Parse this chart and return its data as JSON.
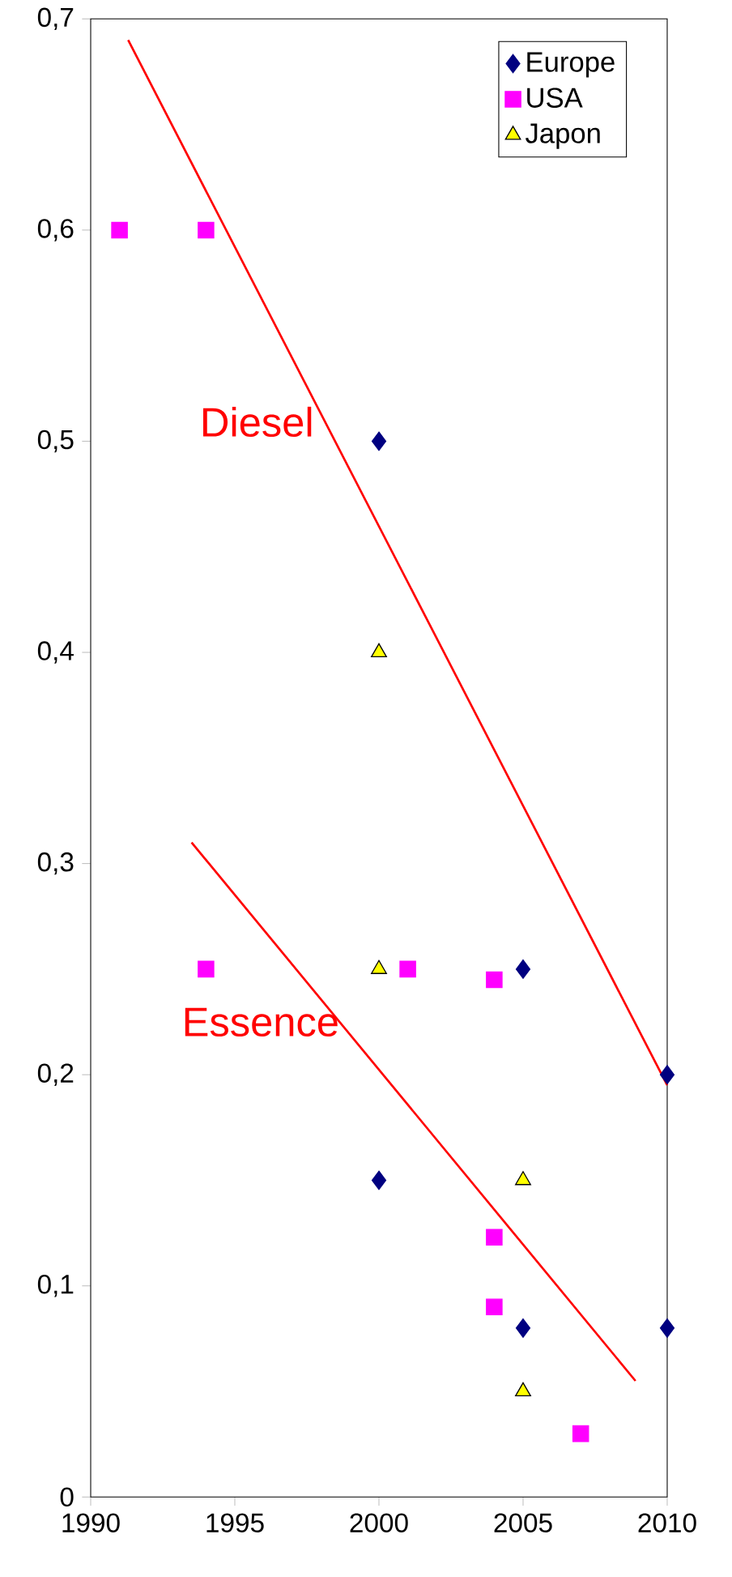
{
  "chart_data": {
    "type": "scatter",
    "xlim": [
      1990,
      2010
    ],
    "ylim": [
      0,
      0.7
    ],
    "xticks": [
      1990,
      1995,
      2000,
      2005,
      2010
    ],
    "yticks": [
      0,
      {
        "value": 0.1,
        "label": "0,1"
      },
      {
        "value": 0.2,
        "label": "0,2"
      },
      {
        "value": 0.3,
        "label": "0,3"
      },
      {
        "value": 0.4,
        "label": "0,4"
      },
      {
        "value": 0.5,
        "label": "0,5"
      },
      {
        "value": 0.6,
        "label": "0,6"
      },
      {
        "value": 0.7,
        "label": "0,7"
      }
    ],
    "legend": "top right",
    "grid": false,
    "series": [
      {
        "name": "Europe",
        "color": "#000080",
        "marker": "diamond",
        "x": [
          2000,
          2000,
          2005,
          2005,
          2010,
          2010
        ],
        "values": [
          0.5,
          0.15,
          0.25,
          0.08,
          0.2,
          0.08
        ]
      },
      {
        "name": "USA",
        "color": "#ff00ff",
        "marker": "square",
        "x": [
          1991,
          1994,
          1994,
          2001,
          2004,
          2004,
          2004,
          2007
        ],
        "values": [
          0.6,
          0.6,
          0.25,
          0.25,
          0.245,
          0.123,
          0.09,
          0.03
        ]
      },
      {
        "name": "Japon",
        "color": "#ffff00",
        "marker": "triangle",
        "x": [
          2000,
          2000,
          2005,
          2005
        ],
        "values": [
          0.4,
          0.25,
          0.15,
          0.05
        ]
      },
      {
        "name": "Diesel",
        "type": "line",
        "color": "#ff0000",
        "marker": "none",
        "x": [
          1991.3,
          2010
        ],
        "values": [
          0.69,
          0.195
        ]
      },
      {
        "name": "Essence",
        "type": "line",
        "color": "#ff0000",
        "marker": "none",
        "x": [
          1993.5,
          2008.9
        ],
        "values": [
          0.31,
          0.055
        ]
      }
    ]
  }
}
